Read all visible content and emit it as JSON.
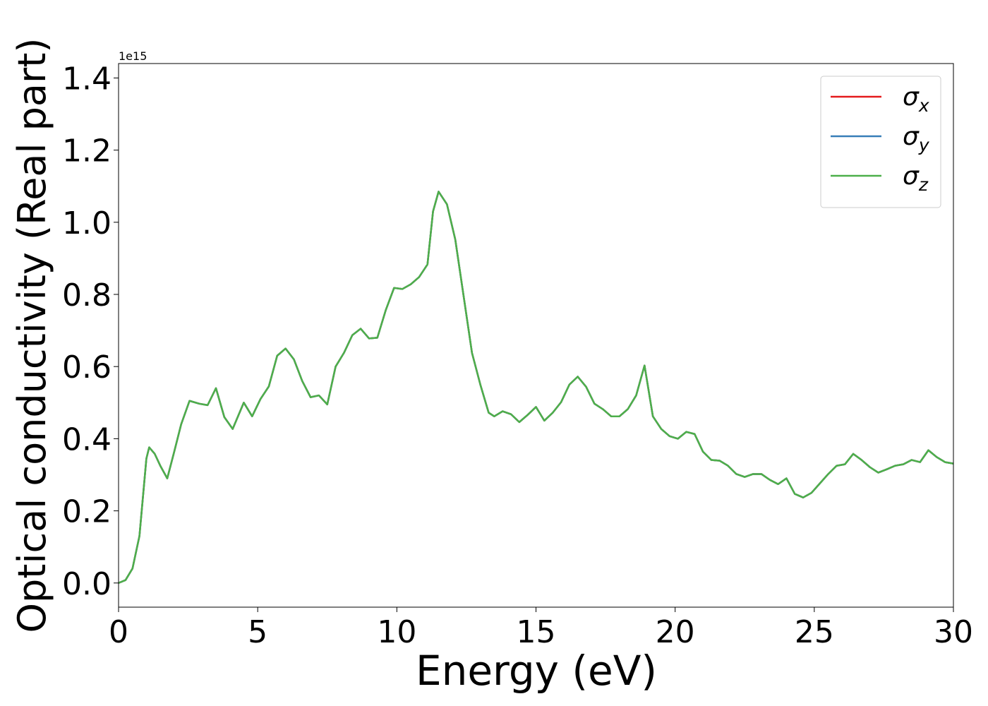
{
  "chart_data": {
    "type": "line",
    "xlabel": "Energy (eV)",
    "ylabel": "Optical conductivity (Real part)",
    "y_offset_label": "1e15",
    "xlim": [
      0,
      30
    ],
    "ylim": [
      -0.067,
      1.44
    ],
    "xticks": [
      0,
      5,
      10,
      15,
      20,
      25,
      30
    ],
    "yticks": [
      {
        "value": 0,
        "label": "0.0"
      },
      0.2,
      0.4,
      0.6,
      0.8,
      {
        "value": 1,
        "label": "1.0"
      },
      1.2,
      1.4
    ],
    "legend": "upper right",
    "x": [
      0,
      0.25,
      0.5,
      0.75,
      1.0,
      1.1,
      1.3,
      1.5,
      1.75,
      2.0,
      2.25,
      2.55,
      2.9,
      3.2,
      3.5,
      3.8,
      4.1,
      4.5,
      4.8,
      5.1,
      5.4,
      5.7,
      6.0,
      6.3,
      6.6,
      6.9,
      7.2,
      7.5,
      7.8,
      8.1,
      8.4,
      8.7,
      9.0,
      9.3,
      9.6,
      9.9,
      10.2,
      10.5,
      10.8,
      11.1,
      11.3,
      11.5,
      11.8,
      12.1,
      12.4,
      12.7,
      13.0,
      13.3,
      13.5,
      13.8,
      14.1,
      14.4,
      14.7,
      15.0,
      15.3,
      15.6,
      15.9,
      16.2,
      16.5,
      16.8,
      17.1,
      17.4,
      17.7,
      18.0,
      18.3,
      18.6,
      18.9,
      19.2,
      19.5,
      19.8,
      20.1,
      20.4,
      20.7,
      21.0,
      21.3,
      21.6,
      21.9,
      22.2,
      22.5,
      22.8,
      23.1,
      23.4,
      23.7,
      24.0,
      24.3,
      24.6,
      24.9,
      25.2,
      25.5,
      25.8,
      26.1,
      26.4,
      26.7,
      27.0,
      27.3,
      27.6,
      27.9,
      28.2,
      28.5,
      28.8,
      29.1,
      29.4,
      29.7,
      30.0
    ],
    "series": [
      {
        "name": "σx",
        "color": "#e41a1c",
        "values": [
          0,
          0.008,
          0.04,
          0.13,
          0.345,
          0.376,
          0.358,
          0.325,
          0.29,
          0.364,
          0.44,
          0.505,
          0.497,
          0.493,
          0.54,
          0.46,
          0.427,
          0.5,
          0.462,
          0.51,
          0.545,
          0.63,
          0.65,
          0.62,
          0.56,
          0.515,
          0.52,
          0.495,
          0.6,
          0.638,
          0.687,
          0.705,
          0.678,
          0.68,
          0.756,
          0.818,
          0.815,
          0.828,
          0.848,
          0.883,
          1.03,
          1.085,
          1.05,
          0.952,
          0.795,
          0.638,
          0.55,
          0.472,
          0.462,
          0.476,
          0.468,
          0.446,
          0.466,
          0.488,
          0.45,
          0.472,
          0.501,
          0.55,
          0.572,
          0.544,
          0.497,
          0.482,
          0.462,
          0.462,
          0.482,
          0.52,
          0.603,
          0.462,
          0.427,
          0.407,
          0.4,
          0.419,
          0.413,
          0.364,
          0.341,
          0.339,
          0.325,
          0.302,
          0.294,
          0.302,
          0.302,
          0.286,
          0.274,
          0.29,
          0.247,
          0.237,
          0.25,
          0.276,
          0.302,
          0.325,
          0.329,
          0.358,
          0.341,
          0.321,
          0.306,
          0.315,
          0.325,
          0.329,
          0.341,
          0.335,
          0.368,
          0.349,
          0.335,
          0.331
        ]
      },
      {
        "name": "σy",
        "color": "#377eb8",
        "values": [
          0,
          0.008,
          0.04,
          0.13,
          0.345,
          0.376,
          0.358,
          0.325,
          0.29,
          0.364,
          0.44,
          0.505,
          0.497,
          0.493,
          0.54,
          0.46,
          0.427,
          0.5,
          0.462,
          0.51,
          0.545,
          0.63,
          0.65,
          0.62,
          0.56,
          0.515,
          0.52,
          0.495,
          0.6,
          0.638,
          0.687,
          0.705,
          0.678,
          0.68,
          0.756,
          0.818,
          0.815,
          0.828,
          0.848,
          0.883,
          1.03,
          1.085,
          1.05,
          0.952,
          0.795,
          0.638,
          0.55,
          0.472,
          0.462,
          0.476,
          0.468,
          0.446,
          0.466,
          0.488,
          0.45,
          0.472,
          0.501,
          0.55,
          0.572,
          0.544,
          0.497,
          0.482,
          0.462,
          0.462,
          0.482,
          0.52,
          0.603,
          0.462,
          0.427,
          0.407,
          0.4,
          0.419,
          0.413,
          0.364,
          0.341,
          0.339,
          0.325,
          0.302,
          0.294,
          0.302,
          0.302,
          0.286,
          0.274,
          0.29,
          0.247,
          0.237,
          0.25,
          0.276,
          0.302,
          0.325,
          0.329,
          0.358,
          0.341,
          0.321,
          0.306,
          0.315,
          0.325,
          0.329,
          0.341,
          0.335,
          0.368,
          0.349,
          0.335,
          0.331
        ]
      },
      {
        "name": "σz",
        "color": "#4daf4a",
        "values": [
          0,
          0.008,
          0.04,
          0.13,
          0.345,
          0.376,
          0.358,
          0.325,
          0.29,
          0.364,
          0.44,
          0.505,
          0.497,
          0.493,
          0.54,
          0.46,
          0.427,
          0.5,
          0.462,
          0.51,
          0.545,
          0.63,
          0.65,
          0.62,
          0.56,
          0.515,
          0.52,
          0.495,
          0.6,
          0.638,
          0.687,
          0.705,
          0.678,
          0.68,
          0.756,
          0.818,
          0.815,
          0.828,
          0.848,
          0.883,
          1.03,
          1.085,
          1.05,
          0.952,
          0.795,
          0.638,
          0.55,
          0.472,
          0.462,
          0.476,
          0.468,
          0.446,
          0.466,
          0.488,
          0.45,
          0.472,
          0.501,
          0.55,
          0.572,
          0.544,
          0.497,
          0.482,
          0.462,
          0.462,
          0.482,
          0.52,
          0.603,
          0.462,
          0.427,
          0.407,
          0.4,
          0.419,
          0.413,
          0.364,
          0.341,
          0.339,
          0.325,
          0.302,
          0.294,
          0.302,
          0.302,
          0.286,
          0.274,
          0.29,
          0.247,
          0.237,
          0.25,
          0.276,
          0.302,
          0.325,
          0.329,
          0.358,
          0.341,
          0.321,
          0.306,
          0.315,
          0.325,
          0.329,
          0.341,
          0.335,
          0.368,
          0.349,
          0.335,
          0.331
        ]
      }
    ]
  }
}
